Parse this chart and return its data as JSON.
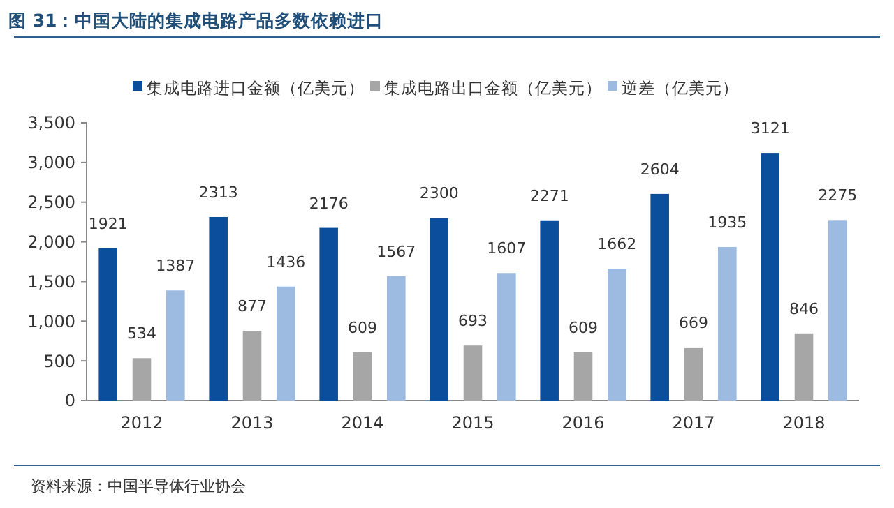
{
  "chart_data": {
    "type": "bar",
    "title": "图 31：中国大陆的集成电路产品多数依赖进口",
    "categories": [
      "2012",
      "2013",
      "2014",
      "2015",
      "2016",
      "2017",
      "2018"
    ],
    "series": [
      {
        "name": "集成电路进口金额（亿美元）",
        "color": "#0b4f9c",
        "values": [
          1921,
          2313,
          2176,
          2300,
          2271,
          2604,
          3121
        ]
      },
      {
        "name": "集成电路出口金额（亿美元）",
        "color": "#a6a6a6",
        "values": [
          534,
          877,
          609,
          693,
          609,
          669,
          846
        ]
      },
      {
        "name": "逆差（亿美元）",
        "color": "#9dbbe0",
        "values": [
          1387,
          1436,
          1567,
          1607,
          1662,
          1935,
          2275
        ]
      }
    ],
    "ylim": [
      0,
      3500
    ],
    "yticks": [
      {
        "value": 0,
        "label": "0"
      },
      {
        "value": 500,
        "label": "500"
      },
      {
        "value": 1000,
        "label": "1,000"
      },
      {
        "value": 1500,
        "label": "1,500"
      },
      {
        "value": 2000,
        "label": "2,000"
      },
      {
        "value": 2500,
        "label": "2,500"
      },
      {
        "value": 3000,
        "label": "3,000"
      },
      {
        "value": 3500,
        "label": "3,500"
      }
    ],
    "data_labels": true,
    "legend": "top",
    "grid": false,
    "annotations": [
      "资料来源：中国半导体行业协会"
    ]
  }
}
